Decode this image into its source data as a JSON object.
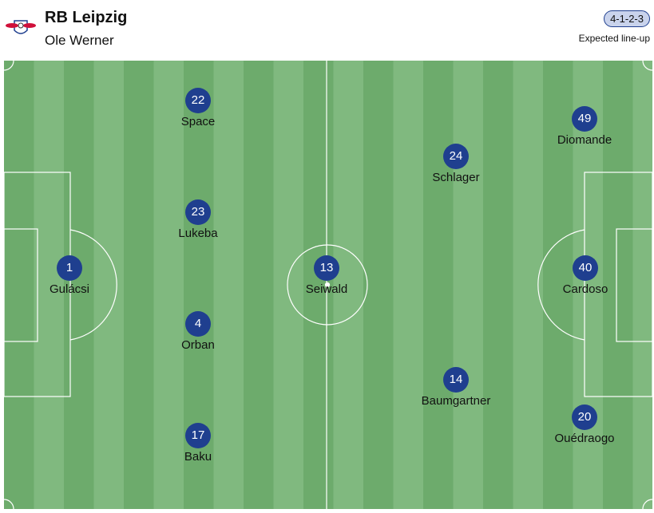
{
  "header": {
    "team": "RB Leipzig",
    "coach": "Ole Werner",
    "formation": "4-1-2-3",
    "lineup_label": "Expected line-up"
  },
  "colors": {
    "player": "#1f3f8f",
    "pitch_dark": "#6dab6c",
    "pitch_light": "#80b97f"
  },
  "players": [
    {
      "number": "1",
      "name": "Gulácsi"
    },
    {
      "number": "22",
      "name": "Space"
    },
    {
      "number": "23",
      "name": "Lukeba"
    },
    {
      "number": "4",
      "name": "Orban"
    },
    {
      "number": "17",
      "name": "Baku"
    },
    {
      "number": "13",
      "name": "Seiwald"
    },
    {
      "number": "24",
      "name": "Schlager"
    },
    {
      "number": "14",
      "name": "Baumgartner"
    },
    {
      "number": "49",
      "name": "Diomande"
    },
    {
      "number": "40",
      "name": "Cardoso"
    },
    {
      "number": "20",
      "name": "Ouédraogo"
    }
  ]
}
